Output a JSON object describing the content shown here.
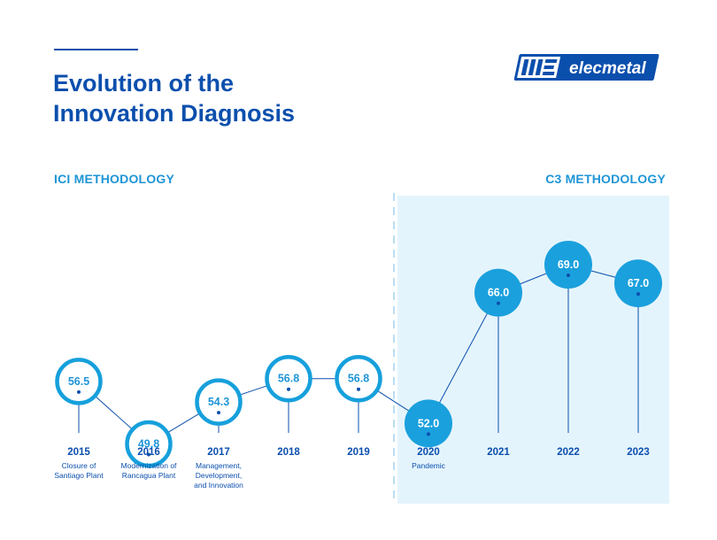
{
  "header": {
    "title_line1": "Evolution of the",
    "title_line2": "Innovation Diagnosis",
    "logo_text": "elecmetal"
  },
  "sections": {
    "left_label": "ICI METHODOLOGY",
    "right_label": "C3 METHODOLOGY"
  },
  "colors": {
    "navy": "#0b4fad",
    "accent": "#1f95d6",
    "ring": "#16a0dc",
    "filled": "#1aa0dd",
    "panel": "#e4f4fc"
  },
  "chart_data": {
    "type": "line",
    "x": [
      "2015",
      "2016",
      "2017",
      "2018",
      "2019",
      "2020",
      "2021",
      "2022",
      "2023"
    ],
    "values": [
      56.5,
      49.8,
      54.3,
      56.8,
      56.8,
      52.0,
      66.0,
      69.0,
      67.0
    ],
    "labels": [
      "56.5",
      "49.8",
      "54.3",
      "56.8",
      "56.8",
      "52.0",
      "66.0",
      "69.0",
      "67.0"
    ],
    "notes": [
      [
        "Closure of",
        "Santiago Plant"
      ],
      [
        "Modernization of",
        "Rancagua Plant"
      ],
      [
        "Management,",
        "Development,",
        "and Innovation"
      ],
      [],
      [],
      [
        "Pandemic"
      ],
      [],
      [],
      []
    ],
    "highlight_from_index": 5,
    "methodologies": [
      "ICI METHODOLOGY",
      "C3 METHODOLOGY"
    ],
    "ylim": [
      45,
      72
    ]
  }
}
